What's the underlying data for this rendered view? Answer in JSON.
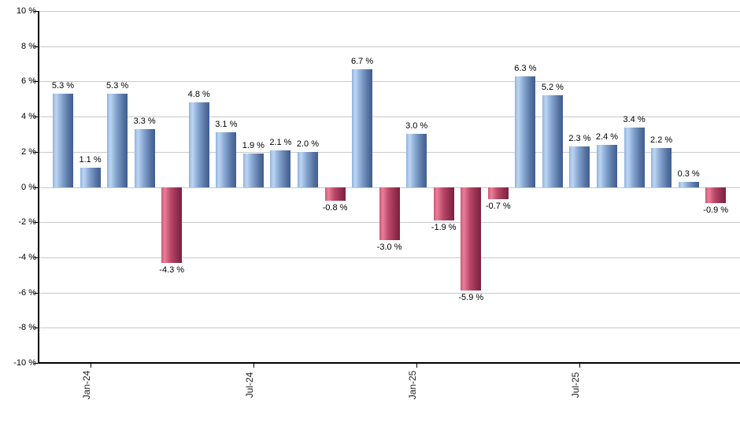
{
  "chart_data": {
    "type": "bar",
    "title": "",
    "xlabel": "",
    "ylabel": "",
    "ylim": [
      -10,
      10
    ],
    "ytick_step": 2,
    "grid": true,
    "legend": false,
    "values": [
      5.3,
      1.1,
      5.3,
      3.3,
      -4.3,
      4.8,
      3.1,
      1.9,
      2.1,
      2.0,
      -0.8,
      6.7,
      -3.0,
      3.0,
      -1.9,
      -5.9,
      -0.7,
      6.3,
      5.2,
      2.3,
      2.4,
      3.4,
      2.2,
      0.3,
      -0.9
    ],
    "value_labels": [
      "5.3 %",
      "1.1 %",
      "5.3 %",
      "3.3 %",
      "-4.3 %",
      "4.8 %",
      "3.1 %",
      "1.9 %",
      "2.1 %",
      "2.0 %",
      "-0.8 %",
      "6.7 %",
      "-3.0 %",
      "3.0 %",
      "-1.9 %",
      "-5.9 %",
      "-0.7 %",
      "6.3 %",
      "5.2 %",
      "2.3 %",
      "2.4 %",
      "3.4 %",
      "2.2 %",
      "0.3 %",
      "-0.9 %"
    ],
    "y_tick_labels": [
      "10 %",
      "8 %",
      "6 %",
      "4 %",
      "2 %",
      "0 %",
      "-2 %",
      "-4 %",
      "-6 %",
      "-8 %",
      "-10 %"
    ],
    "x_tick_labels": [
      {
        "slot": 1,
        "label": "Jan-24"
      },
      {
        "slot": 7,
        "label": "Jul-24"
      },
      {
        "slot": 13,
        "label": "Jan-25"
      },
      {
        "slot": 19,
        "label": "Jul-25"
      }
    ]
  },
  "colors": {
    "positive_gradient": [
      "#8fb2dd",
      "#bdd6f2",
      "#84a4d0",
      "#55729f",
      "#3f5d95"
    ],
    "negative_gradient": [
      "#cf5878",
      "#ea7f99",
      "#bc4868",
      "#8f2d4e",
      "#7e1f3f"
    ],
    "gridline": "#c9c9c9",
    "axis": "#000000",
    "value_text": "#000000",
    "tick_text": "#222222"
  }
}
